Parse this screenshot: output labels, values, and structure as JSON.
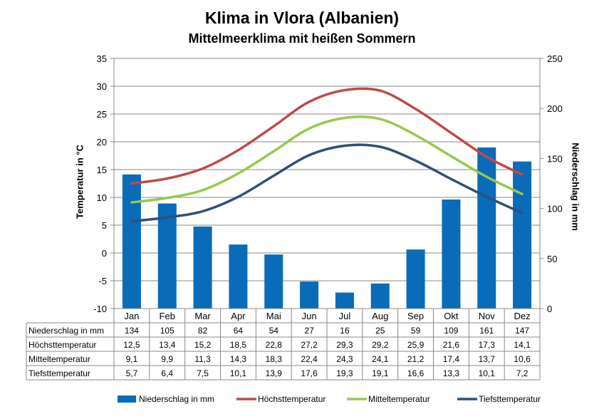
{
  "chart_data": {
    "type": "bar+line",
    "title": "Klima in Vlora (Albanien)",
    "subtitle": "Mittelmeerklima mit heißen Sommern",
    "ylabel_left": "Temperatur in °C",
    "ylabel_right": "Niederschlag in mm",
    "ylim_left": [
      -10,
      35
    ],
    "ylim_right": [
      0,
      250
    ],
    "yticks_left": [
      "35",
      "30",
      "25",
      "20",
      "15",
      "10",
      "5",
      "0",
      "-5",
      "-10"
    ],
    "yticks_right": [
      "250",
      "200",
      "150",
      "100",
      "50",
      "0"
    ],
    "categories": [
      "Jan",
      "Feb",
      "Mar",
      "Apr",
      "Mai",
      "Jun",
      "Jul",
      "Aug",
      "Sep",
      "Okt",
      "Nov",
      "Dez"
    ],
    "grid": true,
    "legend_position": "bottom",
    "series": [
      {
        "name": "Niederschlag in mm",
        "kind": "bar",
        "axis": "right",
        "color": "#0a6bb8",
        "values": [
          134,
          105,
          82,
          64,
          54,
          27,
          16,
          25,
          59,
          109,
          161,
          147
        ],
        "labels": [
          "134",
          "105",
          "82",
          "64",
          "54",
          "27",
          "16",
          "25",
          "59",
          "109",
          "161",
          "147"
        ]
      },
      {
        "name": "Höchsttemperatur",
        "kind": "line",
        "axis": "left",
        "color": "#be4b48",
        "values": [
          12.5,
          13.4,
          15.2,
          18.5,
          22.8,
          27.2,
          29.3,
          29.2,
          25.9,
          21.6,
          17.3,
          14.1
        ],
        "labels": [
          "12,5",
          "13,4",
          "15,2",
          "18,5",
          "22,8",
          "27,2",
          "29,3",
          "29,2",
          "25,9",
          "21,6",
          "17,3",
          "14,1"
        ]
      },
      {
        "name": "Mitteltemperatur",
        "kind": "line",
        "axis": "left",
        "color": "#98c84c",
        "values": [
          9.1,
          9.9,
          11.3,
          14.3,
          18.3,
          22.4,
          24.3,
          24.1,
          21.2,
          17.4,
          13.7,
          10.6
        ],
        "labels": [
          "9,1",
          "9,9",
          "11,3",
          "14,3",
          "18,3",
          "22,4",
          "24,3",
          "24,1",
          "21,2",
          "17,4",
          "13,7",
          "10,6"
        ]
      },
      {
        "name": "Tiefsttemperatur",
        "kind": "line",
        "axis": "left",
        "color": "#2f5078",
        "values": [
          5.7,
          6.4,
          7.5,
          10.1,
          13.9,
          17.6,
          19.3,
          19.1,
          16.6,
          13.3,
          10.1,
          7.2
        ],
        "labels": [
          "5,7",
          "6,4",
          "7,5",
          "10,1",
          "13,9",
          "17,6",
          "19,3",
          "19,1",
          "16,6",
          "13,3",
          "10,1",
          "7,2"
        ]
      }
    ]
  }
}
